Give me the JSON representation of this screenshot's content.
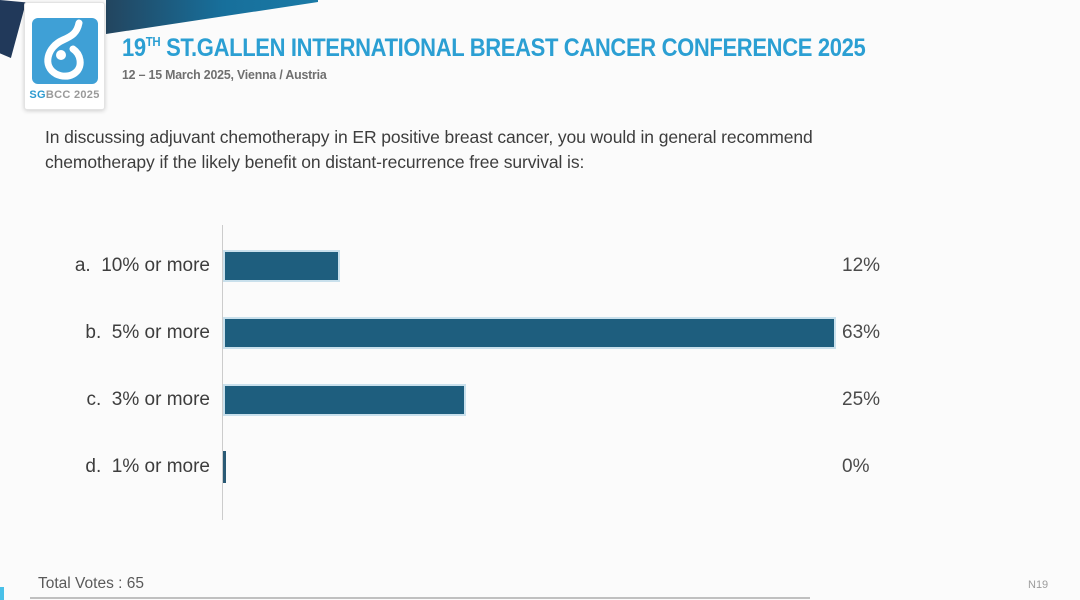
{
  "header": {
    "logo": {
      "sg": "SG",
      "rest": "BCC 2025",
      "square_color": "#3fa0d6"
    },
    "title_number": "19",
    "title_sup": "TH",
    "title_rest": " ST.GALLEN INTERNATIONAL BREAST CANCER CONFERENCE 2025",
    "subtitle": "12 – 15 March 2025, Vienna / Austria",
    "title_color": "#2b9fd3"
  },
  "question": {
    "line1": "In discussing adjuvant chemotherapy in ER positive breast cancer, you would in general recommend",
    "line2": "chemotherapy if the likely benefit on distant-recurrence free survival is:"
  },
  "chart_data": {
    "type": "bar",
    "orientation": "horizontal",
    "title": "",
    "option_letters": [
      "a.",
      "b.",
      "c.",
      "d."
    ],
    "categories": [
      "10% or more",
      "5% or more",
      "3% or more",
      "1% or more"
    ],
    "values": [
      12,
      63,
      25,
      0
    ],
    "value_labels": [
      "12%",
      "63%",
      "25%",
      "0%"
    ],
    "xlim": [
      0,
      63
    ],
    "grid": false,
    "legend": false,
    "bar_color": "#1e5e7e",
    "bar_border_color": "#c9e0ec",
    "axis_color": "#cccccc"
  },
  "footer": {
    "total_votes": "Total Votes : 65",
    "slide_code": "N19"
  }
}
